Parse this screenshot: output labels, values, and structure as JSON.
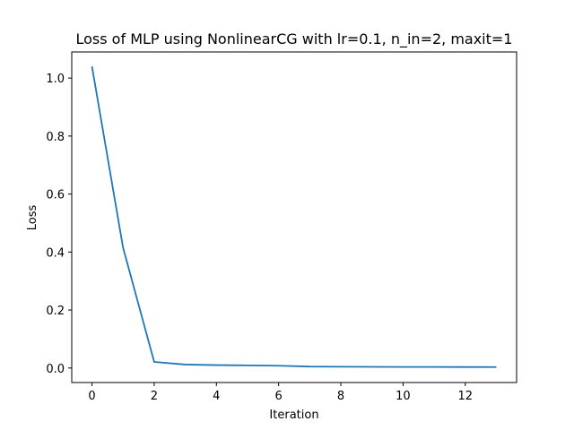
{
  "chart_data": {
    "type": "line",
    "title": "Loss of MLP using NonlinearCG with lr=0.1, n_in=2, maxit=1",
    "xlabel": "Iteration",
    "ylabel": "Loss",
    "xlim": [
      -0.65,
      13.65
    ],
    "ylim": [
      -0.05,
      1.09
    ],
    "xticks": [
      0,
      2,
      4,
      6,
      8,
      10,
      12
    ],
    "xtick_labels": [
      "0",
      "2",
      "4",
      "6",
      "8",
      "10",
      "12"
    ],
    "yticks": [
      0.0,
      0.2,
      0.4,
      0.6,
      0.8,
      1.0
    ],
    "ytick_labels": [
      "0.0",
      "0.2",
      "0.4",
      "0.6",
      "0.8",
      "1.0"
    ],
    "grid": false,
    "legend": "none",
    "series": [
      {
        "color": "#1f77b4",
        "x": [
          0,
          1,
          2,
          3,
          4,
          5,
          6,
          7,
          8,
          9,
          10,
          11,
          12,
          13
        ],
        "y": [
          1.04,
          0.415,
          0.021,
          0.012,
          0.01,
          0.009,
          0.008,
          0.005,
          0.0045,
          0.004,
          0.0038,
          0.0036,
          0.0035,
          0.0034
        ]
      }
    ]
  }
}
